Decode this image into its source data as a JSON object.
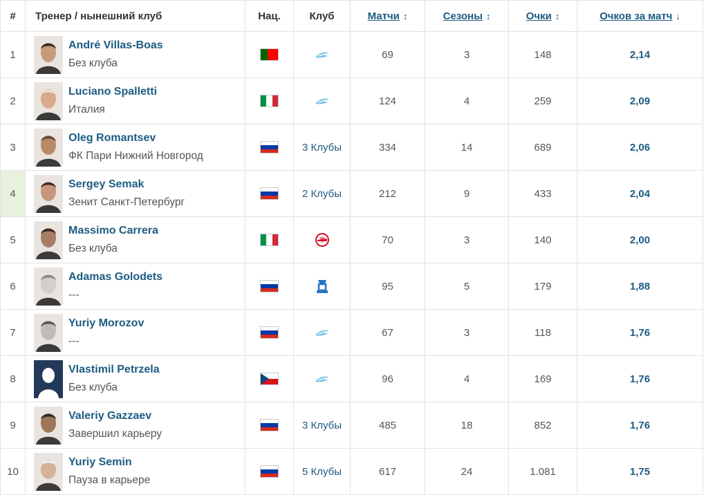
{
  "headers": {
    "rank": "#",
    "coach": "Тренер / нынешний клуб",
    "nat": "Нац.",
    "club": "Клуб",
    "matches": "Матчи",
    "seasons": "Сезоны",
    "points": "Очки",
    "ppm": "Очков за матч",
    "sort_arrow": "↕",
    "sort_active_arrow": "↓"
  },
  "colors": {
    "link": "#1d5b82",
    "row_highlight": "#e8f1dc",
    "border": "#e2e2e2"
  },
  "rows": [
    {
      "rank": "1",
      "name": "André Villas-Boas",
      "club": "Без клуба",
      "flag": "portugal",
      "team": "zenit-logo",
      "team_text": "",
      "matches": "69",
      "seasons": "3",
      "points": "148",
      "ppm": "2,14"
    },
    {
      "rank": "2",
      "name": "Luciano Spalletti",
      "club": "Италия",
      "flag": "italy",
      "team": "zenit-logo",
      "team_text": "",
      "matches": "124",
      "seasons": "4",
      "points": "259",
      "ppm": "2,09"
    },
    {
      "rank": "3",
      "name": "Oleg Romantsev",
      "club": "ФК Пари Нижний Новгород",
      "flag": "russia",
      "team": "",
      "team_text": "3 Клубы",
      "matches": "334",
      "seasons": "14",
      "points": "689",
      "ppm": "2,06"
    },
    {
      "rank": "4",
      "name": "Sergey Semak",
      "club": "Зенит Санкт-Петербург",
      "flag": "russia",
      "team": "",
      "team_text": "2 Клубы",
      "matches": "212",
      "seasons": "9",
      "points": "433",
      "ppm": "2,04"
    },
    {
      "rank": "5",
      "name": "Massimo Carrera",
      "club": "Без клуба",
      "flag": "italy",
      "team": "spartak-logo",
      "team_text": "",
      "matches": "70",
      "seasons": "3",
      "points": "140",
      "ppm": "2,00"
    },
    {
      "rank": "6",
      "name": "Adamas Golodets",
      "club": "---",
      "flag": "russia",
      "team": "dynamo-logo",
      "team_text": "",
      "matches": "95",
      "seasons": "5",
      "points": "179",
      "ppm": "1,88"
    },
    {
      "rank": "7",
      "name": "Yuriy Morozov",
      "club": "---",
      "flag": "russia",
      "team": "zenit-logo",
      "team_text": "",
      "matches": "67",
      "seasons": "3",
      "points": "118",
      "ppm": "1,76"
    },
    {
      "rank": "8",
      "name": "Vlastimil Petrzela",
      "club": "Без клуба",
      "flag": "czech",
      "team": "zenit-logo",
      "team_text": "",
      "matches": "96",
      "seasons": "4",
      "points": "169",
      "ppm": "1,76"
    },
    {
      "rank": "9",
      "name": "Valeriy Gazzaev",
      "club": "Завершил карьеру",
      "flag": "russia",
      "team": "",
      "team_text": "3 Клубы",
      "matches": "485",
      "seasons": "18",
      "points": "852",
      "ppm": "1,76"
    },
    {
      "rank": "10",
      "name": "Yuriy Semin",
      "club": "Пауза в карьере",
      "flag": "russia",
      "team": "",
      "team_text": "5 Клубы",
      "matches": "617",
      "seasons": "24",
      "points": "1.081",
      "ppm": "1,75"
    }
  ]
}
